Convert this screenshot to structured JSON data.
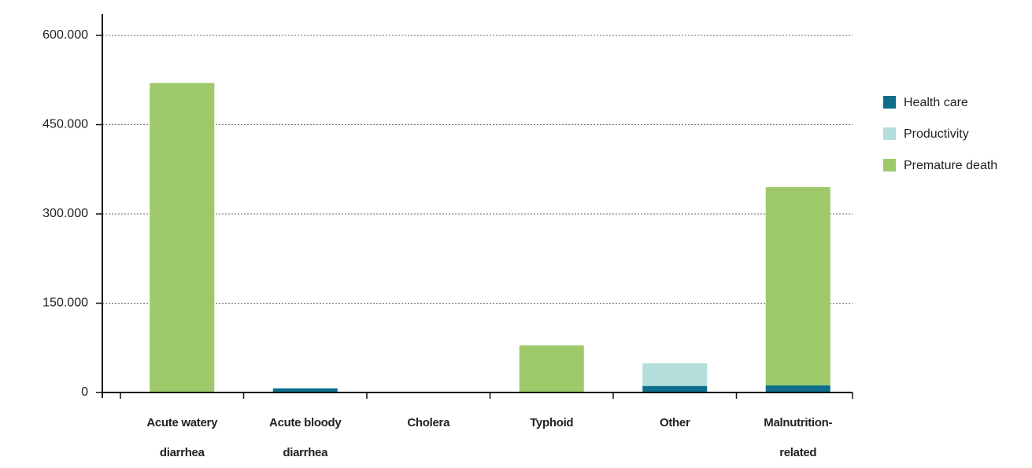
{
  "chart_data": {
    "type": "stacked_bar",
    "categories": [
      "Acute watery diarrhea",
      "Acute bloody diarrhea",
      "Cholera",
      "Typhoid",
      "Other",
      "Malnutrition-related"
    ],
    "series": [
      {
        "name": "Health care",
        "color": "#0e6e8c",
        "values": [
          0,
          7000,
          0,
          1000,
          11000,
          12000
        ]
      },
      {
        "name": "Productivity",
        "color": "#b3dedb",
        "values": [
          0,
          0,
          0,
          0,
          38000,
          0
        ]
      },
      {
        "name": "Premature death",
        "color": "#9dc96a",
        "values": [
          520000,
          0,
          0,
          78000,
          0,
          333000
        ]
      }
    ],
    "ylim": [
      0,
      600000
    ],
    "yticks": [
      0,
      {
        "value": 150000,
        "label": "150.000"
      },
      {
        "value": 300000,
        "label": "300.000"
      },
      {
        "value": 450000,
        "label": "450.000"
      },
      {
        "value": 600000,
        "label": "600.000"
      }
    ],
    "grid": true,
    "legend": "right"
  }
}
